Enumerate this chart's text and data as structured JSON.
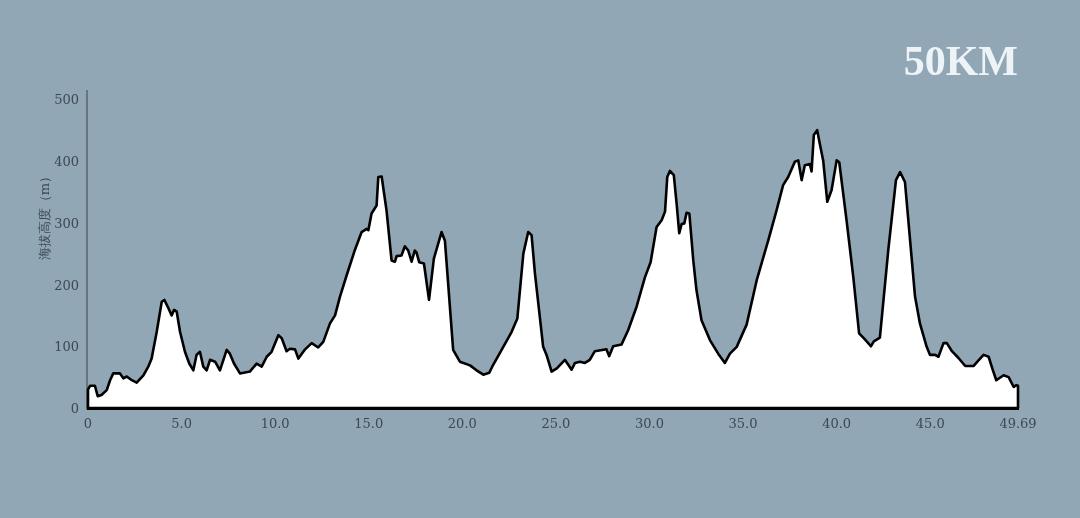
{
  "chart_data": {
    "type": "area",
    "title": "50KM",
    "ylabel": "海拔高度（m）",
    "color": "#ffffff",
    "x": [
      0,
      0.11,
      0.37,
      0.52,
      0.72,
      1.0,
      1.18,
      1.35,
      1.71,
      1.89,
      2.07,
      2.34,
      2.6,
      2.96,
      3.22,
      3.4,
      3.67,
      3.94,
      4.08,
      4.29,
      4.47,
      4.6,
      4.74,
      4.92,
      5.18,
      5.41,
      5.63,
      5.8,
      5.98,
      6.16,
      6.34,
      6.52,
      6.79,
      7.05,
      7.41,
      7.58,
      7.8,
      8.12,
      8.65,
      9.01,
      9.28,
      9.55,
      9.81,
      10.17,
      10.35,
      10.61,
      10.79,
      11.06,
      11.24,
      11.6,
      11.95,
      12.3,
      12.57,
      12.93,
      13.2,
      13.46,
      13.82,
      14.26,
      14.62,
      14.89,
      14.98,
      15.15,
      15.42,
      15.51,
      15.69,
      15.95,
      16.22,
      16.4,
      16.49,
      16.75,
      16.93,
      17.11,
      17.29,
      17.46,
      17.55,
      17.7,
      17.95,
      18.22,
      18.48,
      18.89,
      19.07,
      19.51,
      19.87,
      20.41,
      20.76,
      21.12,
      21.44,
      21.65,
      22.1,
      22.63,
      22.94,
      23.26,
      23.52,
      23.7,
      23.88,
      24.32,
      24.5,
      24.77,
      25.05,
      25.48,
      25.66,
      25.84,
      26.02,
      26.28,
      26.55,
      26.81,
      27.08,
      27.7,
      27.85,
      28.06,
      28.51,
      28.86,
      29.31,
      29.76,
      30.06,
      30.38,
      30.65,
      30.83,
      30.95,
      31.09,
      31.3,
      31.45,
      31.59,
      31.72,
      31.86,
      31.98,
      32.13,
      32.34,
      32.51,
      32.78,
      33.23,
      33.67,
      34.03,
      34.3,
      34.66,
      35.19,
      35.73,
      36.35,
      36.79,
      37.14,
      37.41,
      37.77,
      37.95,
      38.13,
      38.3,
      38.57,
      38.66,
      38.78,
      38.96,
      39.1,
      39.28,
      39.5,
      39.73,
      40.0,
      40.14,
      40.53,
      40.89,
      41.2,
      41.51,
      41.83,
      41.99,
      42.31,
      42.76,
      43.17,
      43.39,
      43.65,
      44.19,
      44.45,
      44.81,
      44.99,
      45.26,
      45.44,
      45.71,
      45.89,
      46.16,
      46.51,
      46.87,
      47.31,
      47.58,
      47.85,
      48.12,
      48.35,
      48.53,
      48.92,
      49.19,
      49.46,
      49.6,
      49.69
    ],
    "values": [
      30,
      36,
      36,
      19,
      21,
      29,
      45,
      56,
      56,
      48,
      51,
      45,
      41,
      53,
      67,
      80,
      123,
      172,
      175,
      162,
      150,
      159,
      156,
      123,
      91,
      72,
      61,
      86,
      91,
      67,
      61,
      78,
      75,
      61,
      94,
      88,
      72,
      56,
      59,
      72,
      67,
      83,
      91,
      118,
      113,
      92,
      96,
      95,
      80,
      95,
      105,
      98,
      107,
      137,
      150,
      180,
      215,
      256,
      285,
      290,
      288,
      315,
      328,
      374,
      375,
      320,
      239,
      237,
      246,
      247,
      262,
      255,
      237,
      255,
      252,
      236,
      234,
      175,
      242,
      285,
      271,
      94,
      75,
      69,
      61,
      54,
      57,
      70,
      94,
      123,
      145,
      250,
      285,
      280,
      218,
      99,
      86,
      59,
      64,
      78,
      70,
      62,
      73,
      75,
      73,
      78,
      92,
      95,
      84,
      100,
      103,
      126,
      164,
      212,
      236,
      293,
      304,
      318,
      374,
      384,
      377,
      331,
      283,
      298,
      299,
      316,
      315,
      239,
      191,
      142,
      110,
      88,
      73,
      88,
      99,
      135,
      207,
      272,
      320,
      361,
      374,
      399,
      401,
      369,
      393,
      395,
      383,
      442,
      450,
      428,
      401,
      334,
      353,
      401,
      398,
      304,
      212,
      121,
      111,
      100,
      108,
      114,
      256,
      369,
      382,
      366,
      180,
      137,
      99,
      86,
      86,
      83,
      105,
      105,
      92,
      81,
      68,
      68,
      77,
      86,
      83,
      61,
      45,
      53,
      50,
      34,
      37,
      36
    ],
    "xlim": [
      0,
      49.69
    ],
    "ylim": [
      0,
      515
    ],
    "xticks": [
      0,
      {
        "value": 5,
        "label": "5.0"
      },
      {
        "value": 10,
        "label": "10.0"
      },
      {
        "value": 15,
        "label": "15.0"
      },
      {
        "value": 20,
        "label": "20.0"
      },
      {
        "value": 25,
        "label": "25.0"
      },
      {
        "value": 30,
        "label": "30.0"
      },
      {
        "value": 35,
        "label": "35.0"
      },
      {
        "value": 40,
        "label": "40.0"
      },
      {
        "value": 45,
        "label": "45.0"
      },
      49.69
    ],
    "yticks": [
      0,
      100,
      200,
      300,
      400,
      500
    ]
  }
}
